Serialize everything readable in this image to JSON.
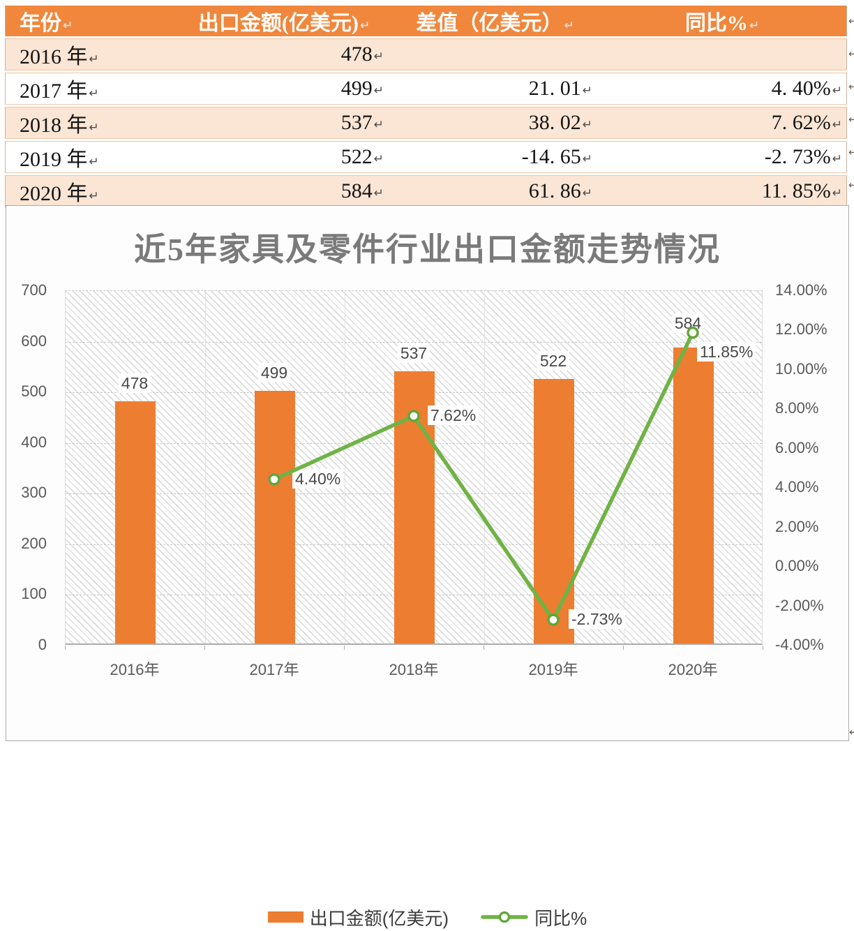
{
  "page": {
    "paragraph_mark": "↵",
    "background": "#FFFFFF"
  },
  "table": {
    "headers": [
      "年份",
      "出口金额(亿美元)",
      "差值（亿美元）",
      "同比%"
    ],
    "rows": [
      [
        "2016 年",
        "478",
        "",
        ""
      ],
      [
        "2017 年",
        "499",
        "21. 01",
        "4. 40%"
      ],
      [
        "2018 年",
        "537",
        "38. 02",
        "7. 62%"
      ],
      [
        "2019 年",
        "522",
        "-14. 65",
        "-2. 73%"
      ],
      [
        "2020 年",
        "584",
        "61. 86",
        "11. 85%"
      ]
    ],
    "style": {
      "header_bg": "#F0873C",
      "header_text": "#FFFFFF",
      "row_alt_bg": "#FBE5D4",
      "row_bg": "#FFFFFF",
      "row_border": "#EFC5A2",
      "text_color": "#141414"
    }
  },
  "chart_data": {
    "type": "bar+line",
    "title": "近5年家具及零件行业出口金额走势情况",
    "categories": [
      "2016年",
      "2017年",
      "2018年",
      "2019年",
      "2020年"
    ],
    "series": [
      {
        "name": "出口金额(亿美元)",
        "type": "bar",
        "axis": "left",
        "color": "#ED7D31",
        "values": [
          478,
          499,
          537,
          522,
          584
        ],
        "data_labels": [
          "478",
          "499",
          "537",
          "522",
          "584"
        ]
      },
      {
        "name": "同比%",
        "type": "line",
        "axis": "right",
        "color": "#6FB345",
        "marker": "circle, white fill, green ring",
        "values": [
          null,
          4.4,
          7.62,
          -2.73,
          11.85
        ],
        "data_labels": [
          null,
          "4.40%",
          "7.62%",
          "-2.73%",
          "11.85%"
        ]
      }
    ],
    "left_axis": {
      "range": [
        0,
        700
      ],
      "step": 100,
      "tick_labels": [
        "700",
        "600",
        "500",
        "400",
        "300",
        "200",
        "100",
        "0"
      ]
    },
    "right_axis": {
      "range": [
        -4,
        14
      ],
      "step": 2,
      "tick_labels": [
        "14.00%",
        "12.00%",
        "10.00%",
        "8.00%",
        "6.00%",
        "4.00%",
        "2.00%",
        "0.00%",
        "-2.00%",
        "-4.00%"
      ]
    },
    "grid": "horizontal dashed gridlines, vertical category separators, diagonal hatched plot background",
    "legend_position": "bottom",
    "style": {
      "title_color": "#7A7A7A",
      "axis_text_color": "#595959",
      "data_label_color": "#494949",
      "grid_color": "#C6C6C6",
      "marker_ring_color": "#5FA636",
      "card_border": "#A9A9A9"
    }
  }
}
